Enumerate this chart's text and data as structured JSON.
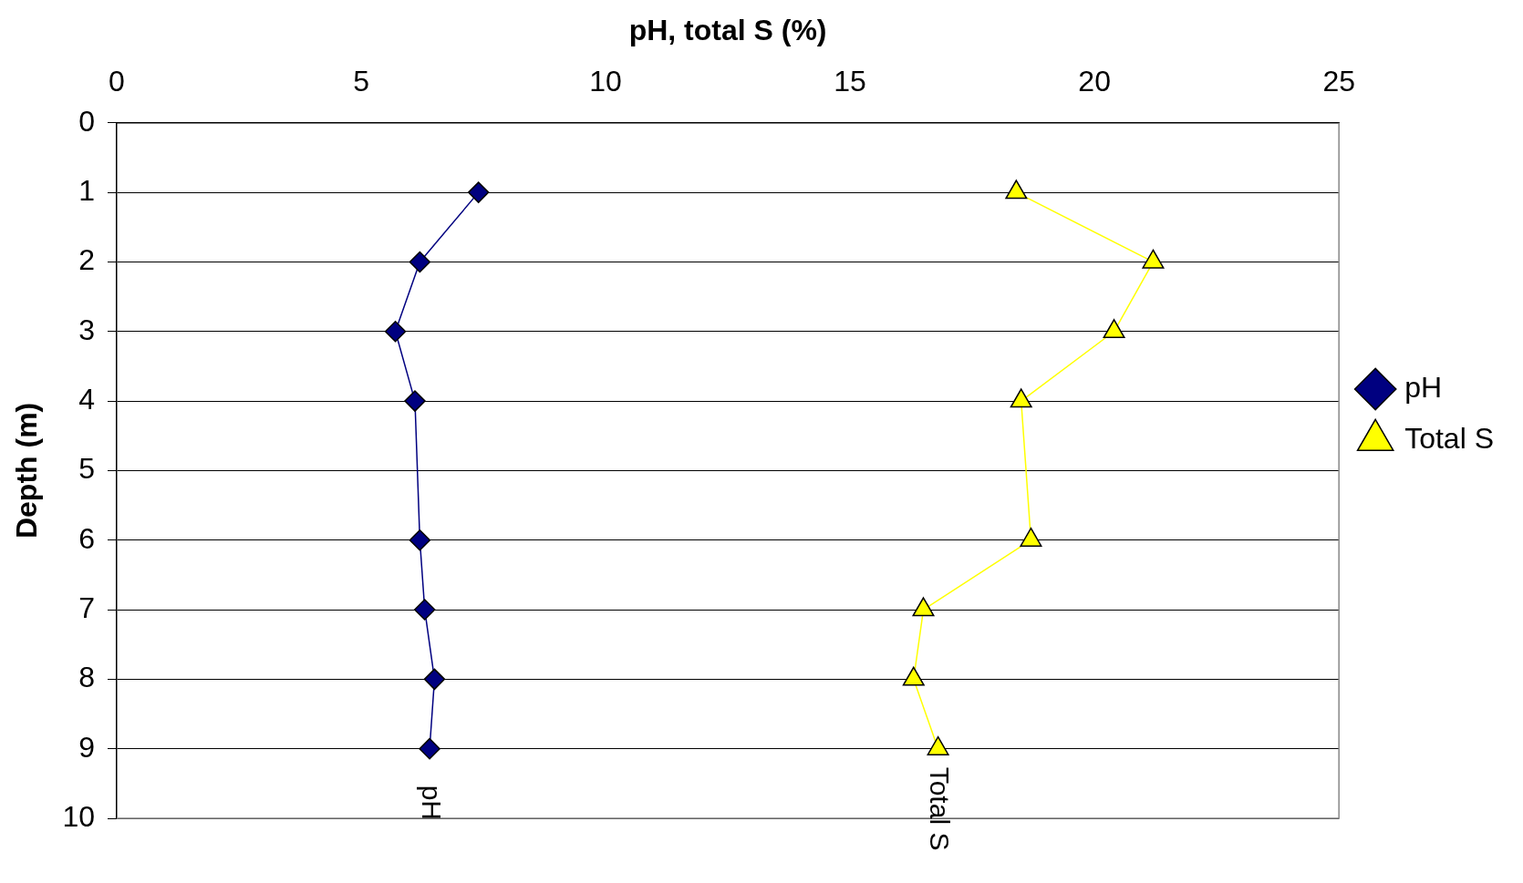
{
  "chart_data": {
    "type": "line",
    "orientation": "horizontal",
    "xlabel": "pH, total S (%)",
    "ylabel": "Depth (m)",
    "x": [
      1,
      2,
      3,
      4,
      6,
      7,
      8,
      9
    ],
    "series": [
      {
        "name": "pH",
        "color": "#000080",
        "marker": "diamond",
        "values": [
          7.4,
          6.2,
          5.7,
          6.1,
          6.2,
          6.3,
          6.5,
          6.4
        ]
      },
      {
        "name": "Total S",
        "color": "#ffff00",
        "marker": "triangle",
        "values": [
          18.4,
          21.2,
          20.4,
          18.5,
          18.7,
          16.5,
          16.3,
          16.8
        ]
      }
    ],
    "xlim": [
      0,
      25
    ],
    "xticks": [
      0,
      5,
      10,
      15,
      20,
      25
    ],
    "ylim": [
      10,
      0
    ],
    "yticks": [
      0,
      1,
      2,
      3,
      4,
      5,
      6,
      7,
      8,
      9,
      10
    ],
    "grid": "y",
    "legend": "right",
    "line_style": "solid",
    "annotations": [
      "pH",
      "Total S"
    ]
  }
}
